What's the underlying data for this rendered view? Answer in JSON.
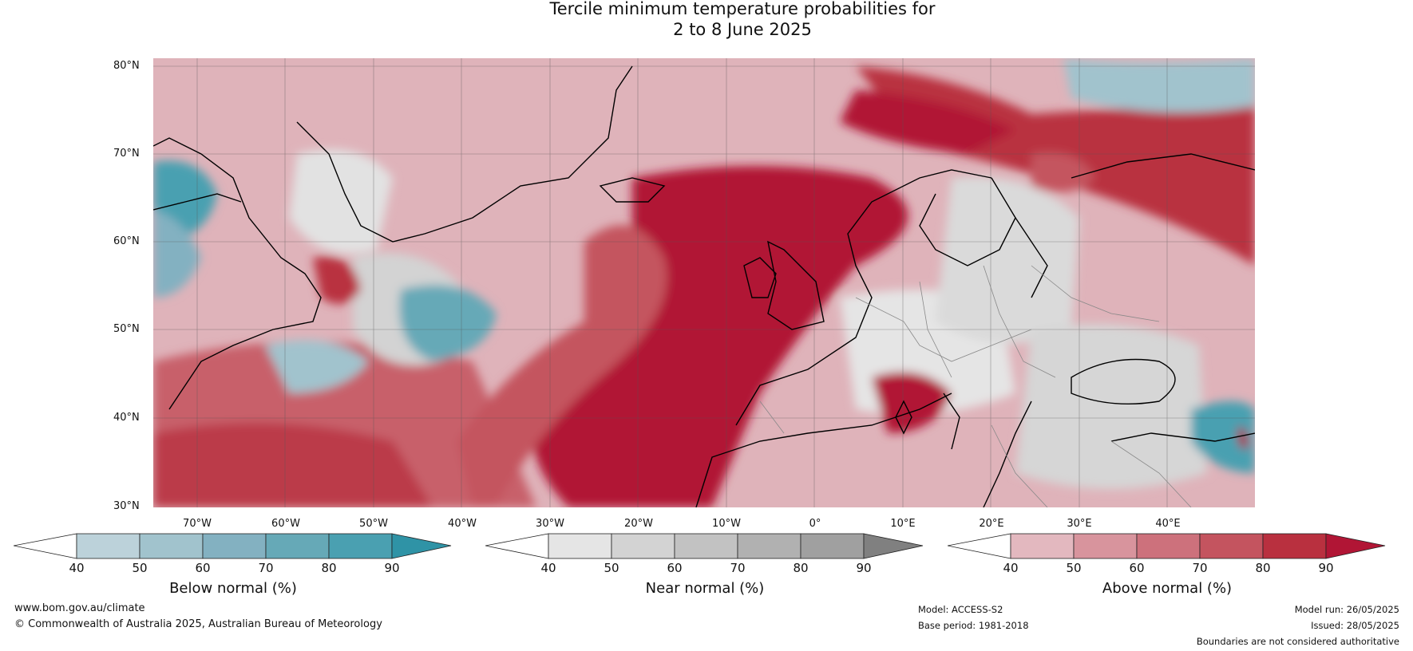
{
  "title": {
    "line1": "Tercile minimum temperature probabilities for",
    "line2": "2 to 8 June 2025"
  },
  "lat_labels": [
    "80°N",
    "70°N",
    "60°N",
    "50°N",
    "40°N",
    "30°N"
  ],
  "lon_labels": [
    "70°W",
    "60°W",
    "50°W",
    "40°W",
    "30°W",
    "20°W",
    "10°W",
    "0°",
    "10°E",
    "20°E",
    "30°E",
    "40°E"
  ],
  "colorbars": [
    {
      "title": "Below normal (%)",
      "ticks": [
        "40",
        "50",
        "60",
        "70",
        "80",
        "90"
      ],
      "colors": [
        "#ffffff",
        "#bcd2da",
        "#a1c3cd",
        "#83b1c1",
        "#66a9b7",
        "#4aa0b1",
        "#2f93a6"
      ]
    },
    {
      "title": "Near normal (%)",
      "ticks": [
        "40",
        "50",
        "60",
        "70",
        "80",
        "90"
      ],
      "colors": [
        "#ffffff",
        "#e5e5e5",
        "#d3d3d3",
        "#c2c2c2",
        "#b1b1b1",
        "#a0a0a0",
        "#808080"
      ]
    },
    {
      "title": "Above normal (%)",
      "ticks": [
        "40",
        "50",
        "60",
        "70",
        "80",
        "90"
      ],
      "colors": [
        "#ffffff",
        "#e3b8bf",
        "#d8949d",
        "#cd717c",
        "#c4545f",
        "#b9303f",
        "#b11535"
      ]
    }
  ],
  "footer": {
    "website": "www.bom.gov.au/climate",
    "copyright": "© Commonwealth of Australia 2025, Australian Bureau of Meteorology",
    "model": "Model: ACCESS-S2",
    "base_period": "Base period: 1981-2018",
    "model_run": "Model run: 26/05/2025",
    "issued": "Issued: 28/05/2025",
    "disclaimer": "Boundaries are not considered authoritative"
  }
}
